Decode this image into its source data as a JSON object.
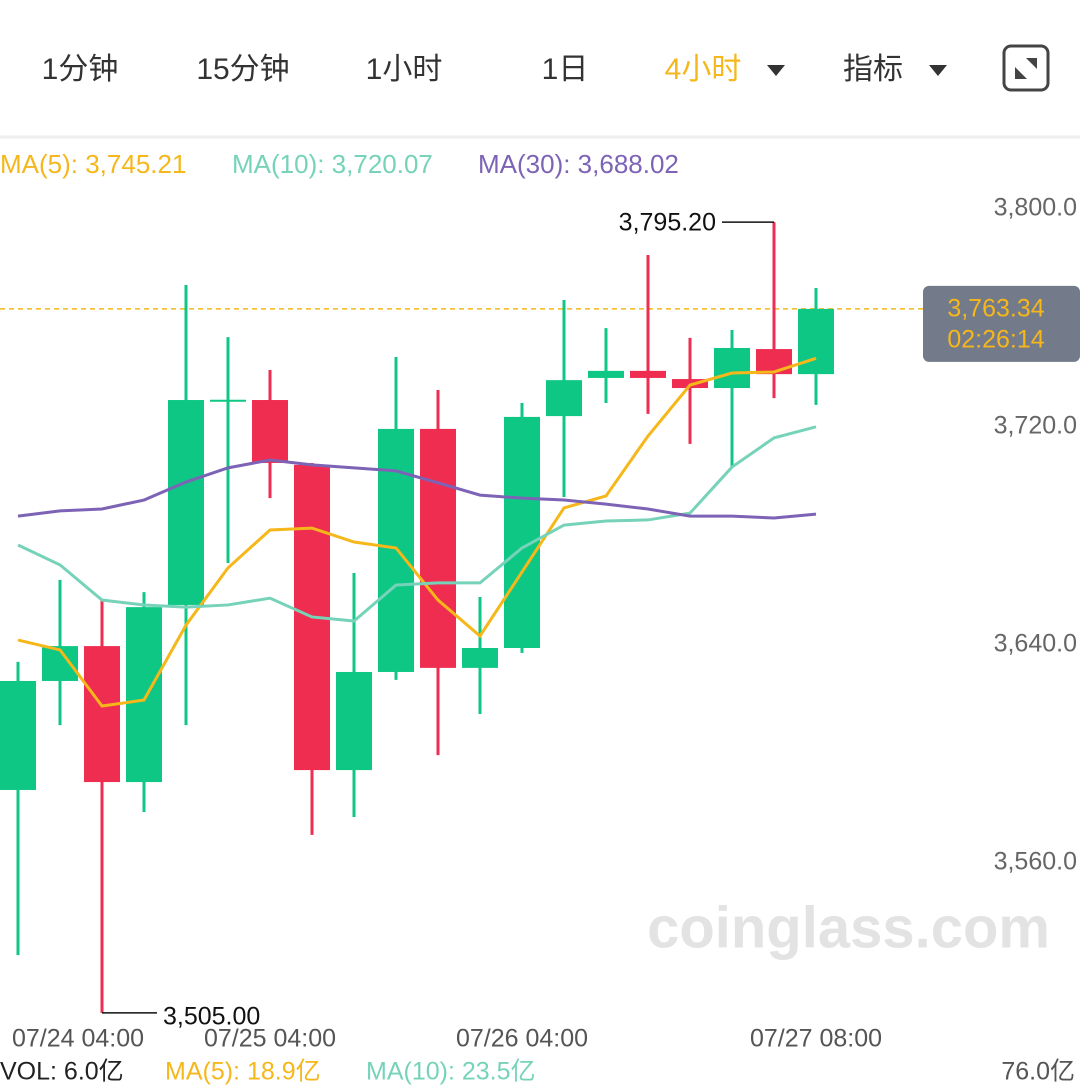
{
  "toolbar": {
    "tabs": [
      "1分钟",
      "15分钟",
      "1小时",
      "1日",
      "4小时",
      "指标"
    ],
    "active": 4,
    "active_color": "#f5b71a",
    "color": "#333333"
  },
  "chart_data": {
    "type": "candlestick",
    "watermark": "coinglass.com",
    "categories": [
      "07/24 04:00",
      null,
      null,
      null,
      null,
      null,
      "07/25 04:00",
      null,
      null,
      null,
      null,
      null,
      "07/26 04:00",
      null,
      null,
      null,
      null,
      null,
      null,
      "07/27 08:00"
    ],
    "open": [
      3586.8,
      3626.8,
      3639.6,
      3589.7,
      3654.7,
      3729.9,
      3729.9,
      3706.1,
      3594.1,
      3630.1,
      3719.3,
      3631.6,
      3638.9,
      3724.0,
      3738.0,
      3740.6,
      3737.6,
      3734.3,
      3748.6,
      3739.4
    ],
    "high": [
      3633.8,
      3663.9,
      3656.5,
      3659.4,
      3772.1,
      3753.0,
      3740.9,
      3706.8,
      3666.4,
      3745.7,
      3733.6,
      3657.6,
      3728.8,
      3766.6,
      3756.3,
      3783.1,
      3752.7,
      3755.6,
      3795.2,
      3771.0
    ],
    "low": [
      3526.2,
      3610.6,
      3505.0,
      3578.7,
      3610.6,
      3670.1,
      3693.9,
      3570.3,
      3576.9,
      3627.2,
      3599.6,
      3614.7,
      3637.1,
      3694.3,
      3728.8,
      3724.8,
      3713.8,
      3705.3,
      3730.6,
      3728.1
    ],
    "close": [
      3626.8,
      3639.6,
      3589.7,
      3653.9,
      3729.9,
      3730.0,
      3706.8,
      3594.1,
      3630.1,
      3719.3,
      3631.6,
      3638.9,
      3723.7,
      3737.2,
      3740.6,
      3738.0,
      3734.3,
      3749.0,
      3739.4,
      3763.34
    ],
    "up_color": "#0fc784",
    "down_color": "#ef2d50",
    "series": [
      {
        "name": "MA(5): 3,745.21",
        "color": "#f5b71a",
        "values": [
          3641.8,
          3638.2,
          3617.6,
          3619.8,
          3647.3,
          3668.3,
          3682.2,
          3682.9,
          3677.8,
          3675.6,
          3656.5,
          3643.3,
          3666.8,
          3690.3,
          3694.7,
          3716.7,
          3735.4,
          3739.8,
          3740.2,
          3745.21
        ]
      },
      {
        "name": "MA(10): 3,720.07",
        "color": "#76d3b9",
        "values": [
          3676.7,
          3669.4,
          3656.5,
          3654.7,
          3653.9,
          3654.7,
          3657.2,
          3650.3,
          3648.8,
          3662.0,
          3662.8,
          3662.8,
          3675.6,
          3684.0,
          3685.5,
          3685.9,
          3688.4,
          3705.3,
          3716.0,
          3720.07
        ]
      },
      {
        "name": "MA(30): 3,688.02",
        "color": "#7d63b5",
        "values": [
          3687.3,
          3689.2,
          3689.9,
          3693.2,
          3699.8,
          3705.0,
          3707.9,
          3706.1,
          3705.0,
          3703.9,
          3699.5,
          3695.0,
          3693.9,
          3693.2,
          3691.7,
          3689.9,
          3687.3,
          3687.3,
          3686.6,
          3688.02
        ]
      }
    ],
    "ylim": [
      3500,
      3825
    ],
    "yticks": [
      {
        "value": 3800,
        "label": "3,800.0"
      },
      {
        "value": 3720,
        "label": "3,720.0"
      },
      {
        "value": 3640,
        "label": "3,640.0"
      },
      {
        "value": 3560,
        "label": "3,560.0"
      }
    ],
    "grid": false,
    "annotations": [
      {
        "index": 18,
        "value": 3795.2,
        "label": "3,795.20",
        "side": "left"
      },
      {
        "index": 2,
        "value": 3505.0,
        "label": "3,505.00",
        "side": "right"
      }
    ],
    "current_price": {
      "value": 3763.34,
      "label": "3,763.34",
      "countdown": "02:26:14",
      "color": "#f5b71a",
      "box_color": "#737a8a"
    },
    "volume_legend": [
      {
        "text": "VOL: 6.0亿",
        "color": "#222222"
      },
      {
        "text": "MA(5): 18.9亿",
        "color": "#f5b71a"
      },
      {
        "text": "MA(10): 23.5亿",
        "color": "#76d3b9"
      }
    ],
    "volume_axis_label": "76.0亿"
  }
}
